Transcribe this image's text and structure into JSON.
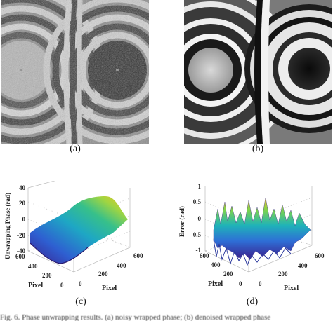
{
  "figure": {
    "captions": {
      "a": "(a)",
      "b": "(b)",
      "c": "(c)",
      "d": "(d)"
    },
    "plot_c": {
      "zlabel": "Unwrapping Phase  (rad)",
      "z_ticks": [
        "40",
        "20",
        "0",
        "-20",
        "-40"
      ],
      "left_ticks": [
        "600",
        "400",
        "200",
        "0"
      ],
      "right_ticks": [
        "600",
        "400",
        "200",
        "0"
      ],
      "left_axis_label": "Pixel",
      "right_axis_label": "Pixel",
      "colormap": [
        "#3b1e8c",
        "#2e5fd1",
        "#1ea7c4",
        "#37c08a",
        "#9fd542",
        "#f2c521"
      ]
    },
    "plot_d": {
      "zlabel": "Error  (rad)",
      "z_ticks": [
        "1",
        "0.5",
        "0",
        "-0.5",
        "-1"
      ],
      "left_ticks": [
        "600",
        "400",
        "200",
        "0"
      ],
      "right_ticks": [
        "600",
        "400",
        "200",
        "0"
      ],
      "left_axis_label": "Pixel",
      "right_axis_label": "Pixel",
      "colormap": [
        "#3b1e8c",
        "#2e6fd6",
        "#1fb3b8",
        "#7dd34c",
        "#f6c623"
      ]
    },
    "bottom_text": "Fig. 6. Phase unwrapping results. (a) noisy wrapped phase; (b) denoised wrapped phase"
  }
}
